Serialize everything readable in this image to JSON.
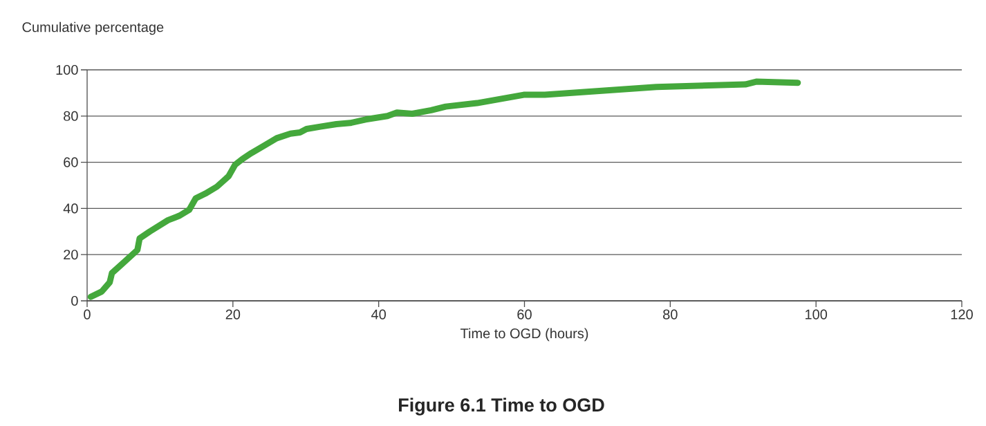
{
  "chart_data": {
    "type": "line",
    "title": "Figure 6.1 Time to OGD",
    "xlabel": "Time to OGD (hours)",
    "ylabel": "Cumulative percentage",
    "xlim": [
      0,
      120
    ],
    "xticks": [
      0,
      20,
      40,
      60,
      80,
      100,
      120
    ],
    "ylim": [
      0,
      100
    ],
    "yticks": [
      0,
      20,
      40,
      60,
      80,
      100
    ],
    "grid": "y",
    "marker": "none",
    "line_style": "solid",
    "series": [
      {
        "color": "#44a83c",
        "x": [
          0.5,
          2.0,
          3.1,
          3.4,
          4.8,
          6.9,
          7.2,
          8.6,
          11.1,
          12.7,
          14.0,
          14.9,
          16.2,
          17.8,
          19.4,
          20.3,
          21.3,
          22.5,
          24.4,
          26.0,
          27.9,
          29.2,
          30.1,
          32.0,
          34.2,
          36.1,
          38.2,
          41.2,
          42.5,
          44.6,
          47.2,
          49.2,
          53.5,
          59.9,
          62.8,
          78.1,
          90.3,
          91.8,
          97.5
        ],
        "values": [
          1.7,
          4.0,
          8.0,
          12.0,
          16.0,
          22.0,
          27.0,
          30.0,
          34.9,
          36.9,
          39.4,
          44.4,
          46.4,
          49.4,
          53.9,
          58.9,
          61.4,
          63.9,
          67.4,
          70.4,
          72.4,
          72.9,
          74.4,
          75.4,
          76.5,
          77.0,
          78.5,
          80.0,
          81.5,
          81.0,
          82.5,
          84.1,
          85.6,
          89.2,
          89.2,
          92.6,
          93.7,
          94.9,
          94.4
        ]
      }
    ]
  }
}
